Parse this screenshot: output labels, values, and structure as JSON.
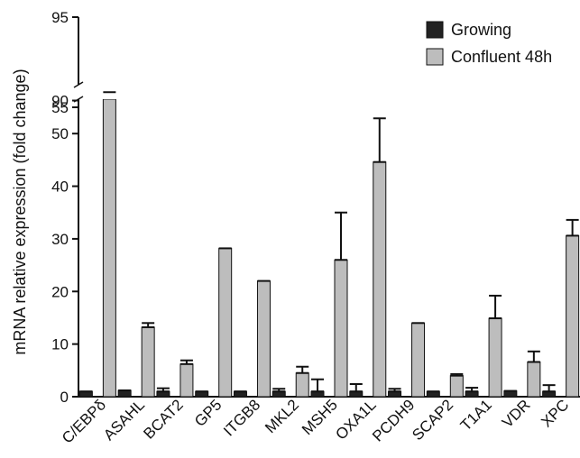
{
  "chart_data": {
    "type": "bar",
    "title": "",
    "xlabel": "",
    "ylabel": "mRNA relative expression (fold change)",
    "categories": [
      "C/EBPδ",
      "ASAHL",
      "BCAT2",
      "GP5",
      "ITGB8",
      "MKL2",
      "MSH5",
      "OXA1L",
      "PCDH9",
      "SCAP2",
      "T1A1",
      "VDR",
      "XPC"
    ],
    "series": [
      {
        "name": "Growing",
        "color": "#222222",
        "values": [
          1,
          1.2,
          1,
          1,
          1,
          1,
          1,
          1,
          1,
          1,
          1,
          1.1,
          1
        ],
        "errors": [
          0,
          0,
          0.6,
          0,
          0,
          0.5,
          2.3,
          1.4,
          0.5,
          0,
          0.7,
          0,
          1.2
        ]
      },
      {
        "name": "Confluent 48h",
        "color": "#bdbdbd",
        "values": [
          90.5,
          13.2,
          6.2,
          28.2,
          22,
          4.5,
          26,
          44.6,
          14,
          4,
          14.9,
          6.6,
          30.6
        ],
        "errors": [
          0,
          0.8,
          0.7,
          0,
          0,
          1.2,
          9,
          8.3,
          0,
          0.3,
          4.3,
          2,
          3
        ]
      }
    ],
    "axis_break": {
      "lower_range": [
        0,
        55
      ],
      "upper_range": [
        88,
        95
      ]
    },
    "yticks_lower": [
      "0",
      "10",
      "20",
      "30",
      "40",
      "50",
      "55"
    ],
    "yticks_upper": [
      "90",
      "95"
    ],
    "grid": false,
    "legend_position": "top-right"
  }
}
